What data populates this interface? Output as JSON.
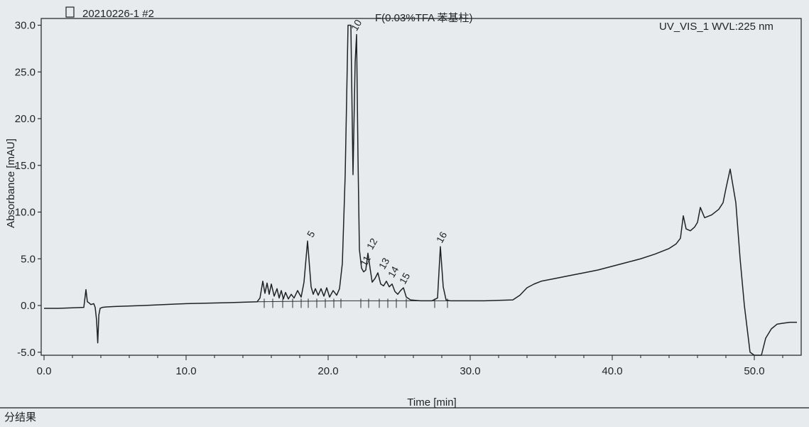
{
  "header": {
    "sample_id": "20210226-1 #2",
    "method": "F(0.03%TFA 苯基柱)",
    "detector": "UV_VIS_1 WVL:225 nm"
  },
  "footer": {
    "caption": "分结果"
  },
  "chart_data": {
    "type": "line",
    "title": "",
    "xlabel": "Time [min]",
    "ylabel": "Absorbance [mAU]",
    "xlim": [
      0,
      53
    ],
    "ylim": [
      -5,
      30
    ],
    "x_ticks": [
      {
        "value": 0,
        "label": "0.0"
      },
      {
        "value": 10,
        "label": "10.0"
      },
      {
        "value": 20,
        "label": "20.0"
      },
      {
        "value": 30,
        "label": "30.0"
      },
      {
        "value": 40,
        "label": "40.0"
      },
      {
        "value": 50,
        "label": "50.0"
      }
    ],
    "y_ticks": [
      {
        "value": -5,
        "label": "-5.0"
      },
      {
        "value": 0,
        "label": "0.0"
      },
      {
        "value": 5,
        "label": "5.0"
      },
      {
        "value": 10,
        "label": "10.0"
      },
      {
        "value": 15,
        "label": "15.0"
      },
      {
        "value": 20,
        "label": "20.0"
      },
      {
        "value": 25,
        "label": "25.0"
      },
      {
        "value": 30,
        "label": "30.0"
      }
    ],
    "grid": false,
    "legend": "none",
    "line_color": "#1e2226",
    "series": [
      {
        "x": [
          0.0,
          1.0,
          2.0,
          2.8,
          2.95,
          3.05,
          3.15,
          3.3,
          3.5,
          3.6,
          3.7,
          3.78,
          3.86,
          3.95,
          4.1,
          4.4,
          5.0,
          7.0,
          10.0,
          13.0,
          15.0,
          15.2,
          15.4,
          15.55,
          15.7,
          15.85,
          16.0,
          16.2,
          16.4,
          16.55,
          16.7,
          16.85,
          17.0,
          17.2,
          17.4,
          17.6,
          17.85,
          18.1,
          18.3,
          18.55,
          18.8,
          18.95,
          19.1,
          19.3,
          19.5,
          19.7,
          19.9,
          20.1,
          20.35,
          20.6,
          20.8,
          21.0,
          21.2,
          21.4,
          21.6,
          21.75,
          21.9,
          22.0,
          22.1,
          22.2,
          22.35,
          22.5,
          22.65,
          22.8,
          22.95,
          23.1,
          23.3,
          23.5,
          23.7,
          23.9,
          24.1,
          24.3,
          24.5,
          24.7,
          24.9,
          25.1,
          25.3,
          25.5,
          25.8,
          26.5,
          27.3,
          27.7,
          27.9,
          28.1,
          28.3,
          28.6,
          29.5,
          31.0,
          33.0,
          33.5,
          34.0,
          34.5,
          35.0,
          36.0,
          37.0,
          38.0,
          39.0,
          40.0,
          41.0,
          42.0,
          43.0,
          44.0,
          44.5,
          44.8,
          45.0,
          45.2,
          45.5,
          45.8,
          46.0,
          46.2,
          46.5,
          47.0,
          47.5,
          47.8,
          48.0,
          48.3,
          48.7,
          49.0,
          49.3,
          49.7,
          50.0,
          50.5,
          50.8,
          51.2,
          51.6,
          52.0,
          52.5,
          53.0
        ],
        "y": [
          -0.3,
          -0.3,
          -0.25,
          -0.2,
          1.7,
          0.4,
          0.3,
          0.1,
          0.2,
          -0.2,
          -1.6,
          -4.0,
          -1.0,
          -0.3,
          -0.2,
          -0.15,
          -0.1,
          0.0,
          0.2,
          0.3,
          0.4,
          0.8,
          2.6,
          1.3,
          2.4,
          1.2,
          2.3,
          1.0,
          1.8,
          0.8,
          1.6,
          0.7,
          1.4,
          0.7,
          1.2,
          0.8,
          1.6,
          0.9,
          2.5,
          6.9,
          2.0,
          1.2,
          1.8,
          1.1,
          1.8,
          1.0,
          1.9,
          0.9,
          1.6,
          1.1,
          1.8,
          4.5,
          14.0,
          30.0,
          30.0,
          14.0,
          26.0,
          29.0,
          16.0,
          6.0,
          4.0,
          3.6,
          3.8,
          5.6,
          4.0,
          2.5,
          2.9,
          3.5,
          2.3,
          2.1,
          2.6,
          2.0,
          2.3,
          1.5,
          1.2,
          1.6,
          1.9,
          0.9,
          0.6,
          0.5,
          0.5,
          0.8,
          6.3,
          2.0,
          0.6,
          0.5,
          0.5,
          0.5,
          0.6,
          1.1,
          1.9,
          2.3,
          2.6,
          2.9,
          3.2,
          3.5,
          3.8,
          4.2,
          4.6,
          5.0,
          5.5,
          6.1,
          6.6,
          7.2,
          9.6,
          8.2,
          8.0,
          8.4,
          8.9,
          10.5,
          9.4,
          9.7,
          10.3,
          11.0,
          12.5,
          14.6,
          11.0,
          5.0,
          0.0,
          -5.0,
          -8.0,
          -8.0,
          -3.5,
          -2.5,
          -2.0,
          -1.9,
          -1.8,
          -1.8
        ]
      }
    ],
    "peaks": [
      {
        "label": "5",
        "x": 18.8,
        "y": 6.9
      },
      {
        "label": "10",
        "x": 21.9,
        "y": 29.0
      },
      {
        "label": "11",
        "x": 22.55,
        "y": 3.8
      },
      {
        "label": "12",
        "x": 23.0,
        "y": 5.6
      },
      {
        "label": "13",
        "x": 23.85,
        "y": 3.5
      },
      {
        "label": "14",
        "x": 24.5,
        "y": 2.6
      },
      {
        "label": "15",
        "x": 25.3,
        "y": 1.9
      },
      {
        "label": "16",
        "x": 27.9,
        "y": 6.3
      }
    ]
  }
}
